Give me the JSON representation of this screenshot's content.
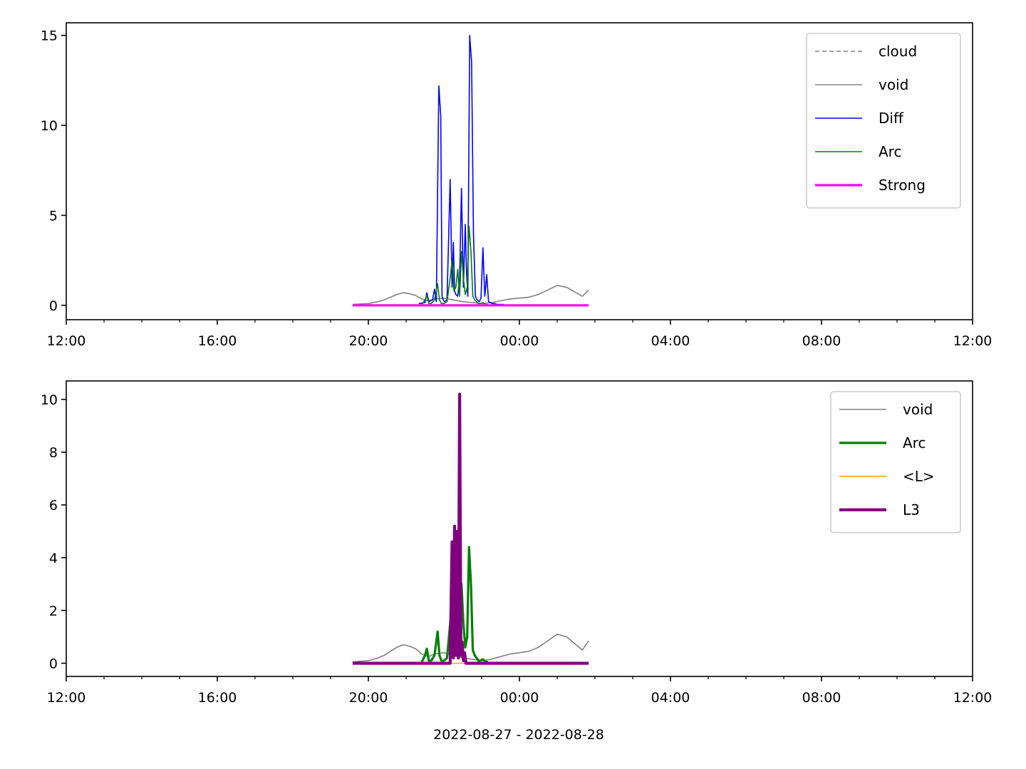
{
  "figure": {
    "xlabel": "2022-08-27 - 2022-08-28"
  },
  "chart_data": [
    {
      "type": "line",
      "xlim": [
        "2022-08-27 12:00",
        "2022-08-28 12:00"
      ],
      "ylim": [
        -0.8,
        15.7
      ],
      "x_ticks": [
        "12:00",
        "16:00",
        "20:00",
        "00:00",
        "04:00",
        "08:00",
        "12:00"
      ],
      "y_ticks": [
        0,
        5,
        10,
        15
      ],
      "legend_position": "top-right",
      "series": [
        {
          "name": "cloud",
          "color": "#808080",
          "style": "dashed",
          "width": 1.6,
          "x": [],
          "y": []
        },
        {
          "name": "void",
          "color": "#808080",
          "style": "solid",
          "width": 1.6,
          "x": [
            "2022-08-27 19:35",
            "2022-08-27 20:00",
            "2022-08-27 20:15",
            "2022-08-27 20:25",
            "2022-08-27 20:35",
            "2022-08-27 20:45",
            "2022-08-27 20:55",
            "2022-08-27 21:05",
            "2022-08-27 21:15",
            "2022-08-27 21:25",
            "2022-08-27 21:35",
            "2022-08-27 21:45",
            "2022-08-27 22:00",
            "2022-08-27 22:15",
            "2022-08-27 22:30",
            "2022-08-27 22:45",
            "2022-08-27 23:00",
            "2022-08-27 23:15",
            "2022-08-27 23:30",
            "2022-08-27 23:45",
            "2022-08-28 00:00",
            "2022-08-28 00:15",
            "2022-08-28 00:30",
            "2022-08-28 00:45",
            "2022-08-28 01:00",
            "2022-08-28 01:15",
            "2022-08-28 01:30",
            "2022-08-28 01:40",
            "2022-08-28 01:50"
          ],
          "y": [
            0.05,
            0.1,
            0.2,
            0.3,
            0.45,
            0.6,
            0.7,
            0.65,
            0.55,
            0.35,
            0.25,
            0.35,
            0.4,
            0.3,
            0.2,
            0.15,
            0.1,
            0.15,
            0.25,
            0.35,
            0.4,
            0.45,
            0.6,
            0.85,
            1.1,
            1.0,
            0.7,
            0.5,
            0.85
          ]
        },
        {
          "name": "Diff",
          "color": "#0000ff",
          "style": "solid",
          "width": 1.6,
          "x": [
            "2022-08-27 21:20",
            "2022-08-27 21:30",
            "2022-08-27 21:33",
            "2022-08-27 21:36",
            "2022-08-27 21:42",
            "2022-08-27 21:45",
            "2022-08-27 21:48",
            "2022-08-27 21:52",
            "2022-08-27 21:55",
            "2022-08-27 21:57",
            "2022-08-27 21:59",
            "2022-08-27 22:01",
            "2022-08-27 22:05",
            "2022-08-27 22:10",
            "2022-08-27 22:13",
            "2022-08-27 22:15",
            "2022-08-27 22:17",
            "2022-08-27 22:19",
            "2022-08-27 22:22",
            "2022-08-27 22:25",
            "2022-08-27 22:28",
            "2022-08-27 22:31",
            "2022-08-27 22:34",
            "2022-08-27 22:36",
            "2022-08-27 22:38",
            "2022-08-27 22:41",
            "2022-08-27 22:44",
            "2022-08-27 22:47",
            "2022-08-27 22:50",
            "2022-08-27 22:53",
            "2022-08-27 22:56",
            "2022-08-27 22:59",
            "2022-08-27 23:02",
            "2022-08-27 23:05",
            "2022-08-27 23:08",
            "2022-08-27 23:11",
            "2022-08-27 23:14",
            "2022-08-27 23:17",
            "2022-08-27 23:20",
            "2022-08-27 23:25",
            "2022-08-27 23:35"
          ],
          "y": [
            0.1,
            0.15,
            0.7,
            0.2,
            0.3,
            0.9,
            0.2,
            12.2,
            10.5,
            0.5,
            0.3,
            0.2,
            0.3,
            7.0,
            1.0,
            3.5,
            0.8,
            0.6,
            0.5,
            1.5,
            6.5,
            1.0,
            4.5,
            1.8,
            0.5,
            15.0,
            13.5,
            4.0,
            0.5,
            0.3,
            0.2,
            0.4,
            3.2,
            0.5,
            1.7,
            0.2,
            0.15,
            0.1,
            0.1,
            0.05,
            0.05
          ]
        },
        {
          "name": "Arc",
          "color": "#008000",
          "style": "solid",
          "width": 1.6,
          "x": [
            "2022-08-27 21:25",
            "2022-08-27 21:30",
            "2022-08-27 21:33",
            "2022-08-27 21:36",
            "2022-08-27 21:40",
            "2022-08-27 21:45",
            "2022-08-27 21:50",
            "2022-08-27 21:53",
            "2022-08-27 21:56",
            "2022-08-27 22:00",
            "2022-08-27 22:05",
            "2022-08-27 22:10",
            "2022-08-27 22:13",
            "2022-08-27 22:16",
            "2022-08-27 22:19",
            "2022-08-27 22:22",
            "2022-08-27 22:25",
            "2022-08-27 22:28",
            "2022-08-27 22:31",
            "2022-08-27 22:34",
            "2022-08-27 22:37",
            "2022-08-27 22:40",
            "2022-08-27 22:43",
            "2022-08-27 22:46",
            "2022-08-27 22:49",
            "2022-08-27 22:52",
            "2022-08-27 22:55",
            "2022-08-27 22:58",
            "2022-08-27 23:02",
            "2022-08-27 23:06",
            "2022-08-27 23:10"
          ],
          "y": [
            0.05,
            0.3,
            0.55,
            0.1,
            0.1,
            0.3,
            1.2,
            0.3,
            0.1,
            0.1,
            0.2,
            1.5,
            2.5,
            0.8,
            1.0,
            2.0,
            0.5,
            3.0,
            1.5,
            0.6,
            1.0,
            4.4,
            3.0,
            0.5,
            0.3,
            0.2,
            0.1,
            0.1,
            0.15,
            0.05,
            0.05
          ]
        },
        {
          "name": "Strong",
          "color": "#ff00ff",
          "style": "solid",
          "width": 3.2,
          "x": [
            "2022-08-27 19:35",
            "2022-08-28 01:50"
          ],
          "y": [
            0,
            0
          ]
        }
      ]
    },
    {
      "type": "line",
      "xlim": [
        "2022-08-27 12:00",
        "2022-08-28 12:00"
      ],
      "ylim": [
        -0.5,
        10.7
      ],
      "x_ticks": [
        "12:00",
        "16:00",
        "20:00",
        "00:00",
        "04:00",
        "08:00",
        "12:00"
      ],
      "y_ticks": [
        0,
        2,
        4,
        6,
        8,
        10
      ],
      "legend_position": "top-right",
      "series": [
        {
          "name": "void",
          "color": "#808080",
          "style": "solid",
          "width": 1.6,
          "x": [
            "2022-08-27 19:35",
            "2022-08-27 20:00",
            "2022-08-27 20:15",
            "2022-08-27 20:25",
            "2022-08-27 20:35",
            "2022-08-27 20:45",
            "2022-08-27 20:55",
            "2022-08-27 21:05",
            "2022-08-27 21:15",
            "2022-08-27 21:25",
            "2022-08-27 21:35",
            "2022-08-27 21:45",
            "2022-08-27 22:00",
            "2022-08-27 22:15",
            "2022-08-27 22:30",
            "2022-08-27 22:45",
            "2022-08-27 23:00",
            "2022-08-27 23:15",
            "2022-08-27 23:30",
            "2022-08-27 23:45",
            "2022-08-28 00:00",
            "2022-08-28 00:15",
            "2022-08-28 00:30",
            "2022-08-28 00:45",
            "2022-08-28 01:00",
            "2022-08-28 01:15",
            "2022-08-28 01:30",
            "2022-08-28 01:40",
            "2022-08-28 01:50"
          ],
          "y": [
            0.05,
            0.1,
            0.2,
            0.3,
            0.45,
            0.6,
            0.7,
            0.65,
            0.55,
            0.35,
            0.25,
            0.35,
            0.4,
            0.3,
            0.2,
            0.15,
            0.1,
            0.15,
            0.25,
            0.35,
            0.4,
            0.45,
            0.6,
            0.85,
            1.1,
            1.0,
            0.7,
            0.5,
            0.85
          ]
        },
        {
          "name": "Arc",
          "color": "#008000",
          "style": "solid",
          "width": 3.2,
          "x": [
            "2022-08-27 21:25",
            "2022-08-27 21:30",
            "2022-08-27 21:33",
            "2022-08-27 21:36",
            "2022-08-27 21:40",
            "2022-08-27 21:45",
            "2022-08-27 21:50",
            "2022-08-27 21:53",
            "2022-08-27 21:56",
            "2022-08-27 22:00",
            "2022-08-27 22:05",
            "2022-08-27 22:10",
            "2022-08-27 22:13",
            "2022-08-27 22:16",
            "2022-08-27 22:19",
            "2022-08-27 22:22",
            "2022-08-27 22:25",
            "2022-08-27 22:28",
            "2022-08-27 22:31",
            "2022-08-27 22:34",
            "2022-08-27 22:37",
            "2022-08-27 22:40",
            "2022-08-27 22:43",
            "2022-08-27 22:46",
            "2022-08-27 22:49",
            "2022-08-27 22:52",
            "2022-08-27 22:55",
            "2022-08-27 22:58",
            "2022-08-27 23:02",
            "2022-08-27 23:06",
            "2022-08-27 23:10"
          ],
          "y": [
            0.05,
            0.3,
            0.55,
            0.1,
            0.1,
            0.3,
            1.2,
            0.3,
            0.1,
            0.1,
            0.2,
            1.5,
            2.5,
            0.8,
            1.0,
            2.0,
            0.5,
            3.0,
            1.5,
            0.6,
            1.0,
            4.4,
            3.0,
            0.5,
            0.3,
            0.2,
            0.1,
            0.1,
            0.15,
            0.05,
            0.05
          ]
        },
        {
          "name": "<L>",
          "color": "#ffa500",
          "style": "solid",
          "width": 1.6,
          "x": [
            "2022-08-27 19:35",
            "2022-08-28 01:50"
          ],
          "y": [
            0,
            0
          ]
        },
        {
          "name": "L3",
          "color": "#800080",
          "style": "solid",
          "width": 4.2,
          "x": [
            "2022-08-27 19:35",
            "2022-08-27 22:10",
            "2022-08-27 22:13",
            "2022-08-27 22:15",
            "2022-08-27 22:17",
            "2022-08-27 22:19",
            "2022-08-27 22:21",
            "2022-08-27 22:23",
            "2022-08-27 22:25",
            "2022-08-27 22:27",
            "2022-08-27 22:29",
            "2022-08-27 22:31",
            "2022-08-27 22:33",
            "2022-08-27 22:35",
            "2022-08-28 01:50"
          ],
          "y": [
            0,
            0,
            4.6,
            0.2,
            5.2,
            0.3,
            5.0,
            0.2,
            10.2,
            0.3,
            0.8,
            0.1,
            0.4,
            0,
            0
          ]
        }
      ]
    }
  ]
}
